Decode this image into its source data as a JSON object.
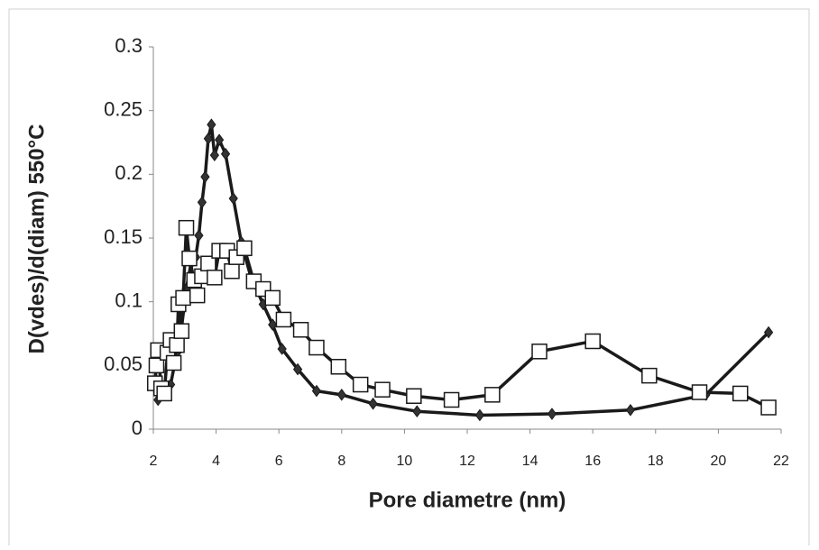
{
  "chart_data": {
    "type": "line",
    "x_label": "Pore diametre  (nm)",
    "y_label": "D(vdes)/d(diam)  550°C",
    "xlim": [
      2,
      22
    ],
    "xticks": [
      2,
      4,
      6,
      8,
      10,
      12,
      14,
      16,
      18,
      20,
      22
    ],
    "ylim": [
      0,
      0.3
    ],
    "yticks": [
      0,
      0.05,
      0.1,
      0.15,
      0.2,
      0.25,
      0.3
    ],
    "grid": false,
    "series": [
      {
        "color": "#1a1a1a",
        "marker": "diamond",
        "marker_fill": "#333333",
        "x": [
          2.15,
          2.35,
          2.55,
          2.75,
          2.9,
          3.05,
          3.2,
          3.35,
          3.45,
          3.55,
          3.65,
          3.75,
          3.85,
          3.95,
          4.1,
          4.3,
          4.55,
          4.8,
          5.1,
          5.5,
          5.8,
          6.1,
          6.6,
          7.2,
          8.0,
          9.0,
          10.4,
          12.4,
          14.7,
          17.2,
          19.6,
          21.6
        ],
        "values": [
          0.023,
          0.03,
          0.035,
          0.06,
          0.08,
          0.11,
          0.13,
          0.135,
          0.152,
          0.178,
          0.198,
          0.228,
          0.239,
          0.215,
          0.227,
          0.216,
          0.181,
          0.147,
          0.12,
          0.098,
          0.082,
          0.063,
          0.047,
          0.03,
          0.027,
          0.02,
          0.014,
          0.011,
          0.012,
          0.015,
          0.027,
          0.076
        ]
      },
      {
        "color": "#1a1a1a",
        "marker": "square",
        "marker_fill": "#ffffff",
        "x": [
          2.05,
          2.1,
          2.15,
          2.25,
          2.35,
          2.45,
          2.55,
          2.65,
          2.75,
          2.8,
          2.9,
          2.95,
          3.05,
          3.15,
          3.3,
          3.4,
          3.55,
          3.75,
          3.95,
          4.1,
          4.35,
          4.5,
          4.65,
          4.9,
          5.2,
          5.5,
          5.8,
          6.15,
          6.7,
          7.2,
          7.9,
          8.6,
          9.3,
          10.3,
          11.5,
          12.8,
          14.3,
          16.0,
          17.8,
          19.4,
          20.7,
          21.6
        ],
        "values": [
          0.036,
          0.05,
          0.062,
          0.032,
          0.028,
          0.06,
          0.07,
          0.052,
          0.066,
          0.098,
          0.077,
          0.103,
          0.158,
          0.134,
          0.117,
          0.105,
          0.12,
          0.13,
          0.119,
          0.14,
          0.14,
          0.124,
          0.135,
          0.142,
          0.116,
          0.11,
          0.103,
          0.086,
          0.078,
          0.064,
          0.049,
          0.035,
          0.031,
          0.026,
          0.023,
          0.027,
          0.061,
          0.069,
          0.042,
          0.029,
          0.028,
          0.017
        ]
      }
    ]
  }
}
